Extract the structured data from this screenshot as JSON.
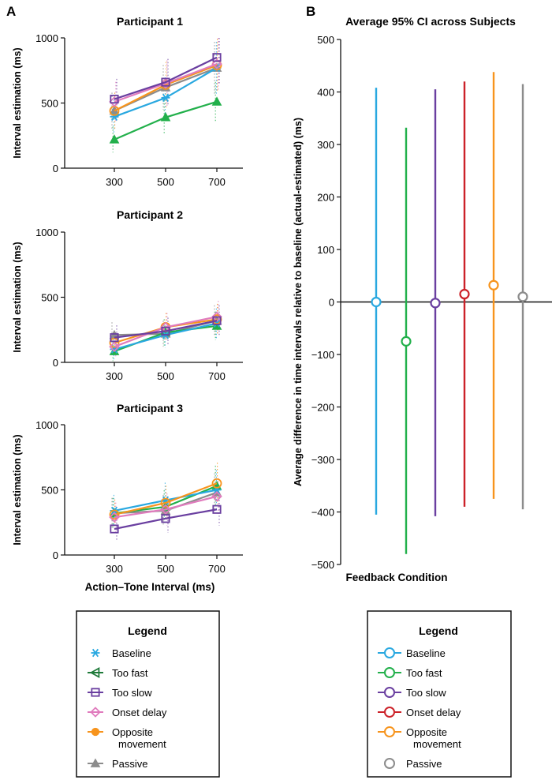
{
  "panel_a_letter": "A",
  "panel_b_letter": "B",
  "colors": {
    "baseline": "#29a8e0",
    "too_fast": "#22b04b",
    "too_slow": "#6a3fa0",
    "onset_delay": "#e07bbd",
    "onset_delay_b": "#cc2229",
    "opposite": "#f7941d",
    "passive": "#8c8c8c"
  },
  "legend_a": {
    "title": "Legend",
    "items": [
      {
        "label": "Baseline",
        "marker": "asterisk",
        "color": "#29a8e0"
      },
      {
        "label": "Too fast",
        "marker": "triangle-left",
        "color": "#1f7a3a"
      },
      {
        "label": "Too slow",
        "marker": "square",
        "color": "#6a3fa0"
      },
      {
        "label": "Onset delay",
        "marker": "diamond",
        "color": "#e07bbd"
      },
      {
        "label": "Opposite",
        "label2": "movement",
        "marker": "circle-filled",
        "color": "#f7941d"
      },
      {
        "label": "Passive",
        "marker": "triangle",
        "color": "#8c8c8c"
      }
    ]
  },
  "legend_b": {
    "title": "Legend",
    "items": [
      {
        "label": "Baseline",
        "color": "#29a8e0"
      },
      {
        "label": "Too fast",
        "color": "#22b04b"
      },
      {
        "label": "Too slow",
        "color": "#6a3fa0"
      },
      {
        "label": "Onset delay",
        "color": "#cc2229"
      },
      {
        "label": "Opposite",
        "label2": "movement",
        "color": "#f7941d"
      },
      {
        "label": "Passive",
        "color": "#8c8c8c",
        "no_line": true
      }
    ]
  },
  "chart_data": [
    {
      "type": "line",
      "title": "Participant 1",
      "xlabel": "",
      "ylabel": "Interval estimation (ms)",
      "categories": [
        "300",
        "500",
        "700"
      ],
      "yticks": [
        "0",
        "500",
        "1000"
      ],
      "ylim": [
        0,
        1000
      ],
      "series": [
        {
          "name": "Baseline",
          "key": "baseline",
          "marker": "asterisk",
          "values": [
            395,
            540,
            770
          ]
        },
        {
          "name": "Too fast",
          "key": "too_fast",
          "marker": "triangle",
          "values": [
            220,
            390,
            510
          ]
        },
        {
          "name": "Too slow",
          "key": "too_slow",
          "marker": "square",
          "values": [
            530,
            660,
            850
          ]
        },
        {
          "name": "Onset delay",
          "key": "onset_delay",
          "marker": "diamond",
          "values": [
            510,
            650,
            800
          ]
        },
        {
          "name": "Opposite movement",
          "key": "opposite",
          "marker": "circle",
          "values": [
            440,
            640,
            790
          ]
        },
        {
          "name": "Passive",
          "key": "passive",
          "marker": "triangle",
          "values": [
            440,
            620,
            770
          ]
        }
      ]
    },
    {
      "type": "line",
      "title": "Participant 2",
      "xlabel": "",
      "ylabel": "Interval estimation (ms)",
      "categories": [
        "300",
        "500",
        "700"
      ],
      "yticks": [
        "0",
        "500",
        "1000"
      ],
      "ylim": [
        0,
        1000
      ],
      "series": [
        {
          "name": "Baseline",
          "key": "baseline",
          "marker": "asterisk",
          "values": [
            100,
            210,
            300
          ]
        },
        {
          "name": "Too fast",
          "key": "too_fast",
          "marker": "triangle",
          "values": [
            85,
            230,
            280
          ]
        },
        {
          "name": "Too slow",
          "key": "too_slow",
          "marker": "square",
          "values": [
            190,
            240,
            320
          ]
        },
        {
          "name": "Onset delay",
          "key": "onset_delay",
          "marker": "diamond",
          "values": [
            120,
            270,
            350
          ]
        },
        {
          "name": "Opposite movement",
          "key": "opposite",
          "marker": "circle",
          "values": [
            150,
            270,
            330
          ]
        },
        {
          "name": "Passive",
          "key": "passive",
          "marker": "triangle",
          "values": [
            210,
            220,
            320
          ]
        }
      ]
    },
    {
      "type": "line",
      "title": "Participant 3",
      "xlabel": "Action–Tone Interval (ms)",
      "ylabel": "Interval estimation (ms)",
      "categories": [
        "300",
        "500",
        "700"
      ],
      "yticks": [
        "0",
        "500",
        "1000"
      ],
      "ylim": [
        0,
        1000
      ],
      "series": [
        {
          "name": "Baseline",
          "key": "baseline",
          "marker": "asterisk",
          "values": [
            340,
            420,
            500
          ]
        },
        {
          "name": "Too fast",
          "key": "too_fast",
          "marker": "triangle",
          "values": [
            320,
            370,
            530
          ]
        },
        {
          "name": "Too slow",
          "key": "too_slow",
          "marker": "square",
          "values": [
            200,
            280,
            350
          ]
        },
        {
          "name": "Onset delay",
          "key": "onset_delay",
          "marker": "diamond",
          "values": [
            290,
            350,
            450
          ]
        },
        {
          "name": "Opposite movement",
          "key": "opposite",
          "marker": "circle",
          "values": [
            310,
            400,
            550
          ]
        },
        {
          "name": "Passive",
          "key": "passive",
          "marker": "triangle",
          "values": [
            320,
            340,
            480
          ]
        }
      ]
    },
    {
      "type": "errorbar",
      "title": "Average 95% CI across Subjects",
      "xlabel": "Feedback Condition",
      "ylabel": "Average difference in time intervals relative to baseline (actual-estimated) (ms)",
      "ylim": [
        -500,
        500
      ],
      "yticks": [
        "500",
        "400",
        "300",
        "200",
        "100",
        "0",
        "−100",
        "−200",
        "−300",
        "−400",
        "−500"
      ],
      "ytick_values": [
        500,
        400,
        300,
        200,
        100,
        0,
        -100,
        -200,
        -300,
        -400,
        -500
      ],
      "series": [
        {
          "name": "Baseline",
          "key": "baseline",
          "mean": 0,
          "lower": -405,
          "upper": 408
        },
        {
          "name": "Too fast",
          "key": "too_fast",
          "mean": -75,
          "lower": -480,
          "upper": 332
        },
        {
          "name": "Too slow",
          "key": "too_slow",
          "mean": -2,
          "lower": -408,
          "upper": 405
        },
        {
          "name": "Onset delay",
          "key": "onset_delay_b",
          "mean": 15,
          "lower": -390,
          "upper": 420
        },
        {
          "name": "Opposite movement",
          "key": "opposite",
          "mean": 32,
          "lower": -375,
          "upper": 438
        },
        {
          "name": "Passive",
          "key": "passive",
          "mean": 10,
          "lower": -395,
          "upper": 415
        }
      ]
    }
  ]
}
